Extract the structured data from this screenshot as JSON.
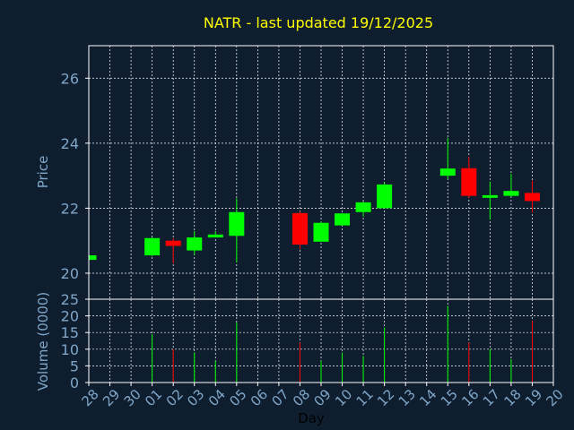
{
  "colors": {
    "background": "#0f1e2f",
    "title": "#ffff00",
    "axis_text": "#7fa6c8",
    "frame": "#ffffff",
    "grid": "#ffffff",
    "up": "#00ff00",
    "down": "#ff0000",
    "x_label": "#000000"
  },
  "chart_data": [
    {
      "type": "candlestick",
      "title": "NATR - last updated 19/12/2025",
      "ylabel": "Price",
      "ylim": [
        19.2,
        27.0
      ],
      "yticks": [
        20,
        22,
        24,
        26
      ],
      "grid": true,
      "x": [
        "28",
        "29",
        "30",
        "01",
        "02",
        "03",
        "04",
        "05",
        "06",
        "07",
        "08",
        "09",
        "10",
        "11",
        "12",
        "13",
        "14",
        "15",
        "16",
        "17",
        "18",
        "19",
        "20"
      ],
      "candles": [
        {
          "x": "28",
          "open": 20.41,
          "close": 20.55,
          "high": 20.55,
          "low": 20.41
        },
        {
          "x": "01",
          "open": 20.55,
          "close": 21.08,
          "high": 21.1,
          "low": 20.52
        },
        {
          "x": "02",
          "open": 21.0,
          "close": 20.84,
          "high": 21.08,
          "low": 20.3
        },
        {
          "x": "03",
          "open": 20.7,
          "close": 21.1,
          "high": 21.3,
          "low": 20.57
        },
        {
          "x": "04",
          "open": 21.1,
          "close": 21.19,
          "high": 21.3,
          "low": 21.1
        },
        {
          "x": "05",
          "open": 21.15,
          "close": 21.88,
          "high": 22.3,
          "low": 20.33
        },
        {
          "x": "08",
          "open": 21.85,
          "close": 20.88,
          "high": 21.9,
          "low": 20.74
        },
        {
          "x": "09",
          "open": 20.97,
          "close": 21.55,
          "high": 21.6,
          "low": 20.97
        },
        {
          "x": "10",
          "open": 21.47,
          "close": 21.84,
          "high": 21.84,
          "low": 21.47
        },
        {
          "x": "11",
          "open": 21.88,
          "close": 22.18,
          "high": 22.2,
          "low": 21.74
        },
        {
          "x": "12",
          "open": 22.0,
          "close": 22.73,
          "high": 22.79,
          "low": 22.0
        },
        {
          "x": "15",
          "open": 23.0,
          "close": 23.22,
          "high": 24.17,
          "low": 22.9
        },
        {
          "x": "16",
          "open": 23.23,
          "close": 22.38,
          "high": 23.58,
          "low": 22.32
        },
        {
          "x": "17",
          "open": 22.32,
          "close": 22.4,
          "high": 22.82,
          "low": 21.65
        },
        {
          "x": "18",
          "open": 22.38,
          "close": 22.53,
          "high": 23.06,
          "low": 22.35
        },
        {
          "x": "19",
          "open": 22.47,
          "close": 22.22,
          "high": 22.85,
          "low": 21.86
        }
      ]
    },
    {
      "type": "bar",
      "ylabel": "Volume (0000)",
      "xlabel": "Day",
      "ylim": [
        0,
        25
      ],
      "yticks": [
        0,
        5,
        10,
        15,
        20,
        25
      ],
      "grid": true,
      "x": [
        "28",
        "29",
        "30",
        "01",
        "02",
        "03",
        "04",
        "05",
        "06",
        "07",
        "08",
        "09",
        "10",
        "11",
        "12",
        "13",
        "14",
        "15",
        "16",
        "17",
        "18",
        "19",
        "20"
      ],
      "bars": [
        {
          "x": "01",
          "value": 14.5,
          "direction": "up"
        },
        {
          "x": "02",
          "value": 10,
          "direction": "down"
        },
        {
          "x": "03",
          "value": 9,
          "direction": "up"
        },
        {
          "x": "04",
          "value": 6.5,
          "direction": "up"
        },
        {
          "x": "05",
          "value": 18,
          "direction": "up"
        },
        {
          "x": "08",
          "value": 12,
          "direction": "down"
        },
        {
          "x": "09",
          "value": 6.5,
          "direction": "up"
        },
        {
          "x": "10",
          "value": 9,
          "direction": "up"
        },
        {
          "x": "11",
          "value": 8,
          "direction": "up"
        },
        {
          "x": "12",
          "value": 16.5,
          "direction": "up"
        },
        {
          "x": "15",
          "value": 23,
          "direction": "up"
        },
        {
          "x": "16",
          "value": 12,
          "direction": "down"
        },
        {
          "x": "17",
          "value": 10,
          "direction": "up"
        },
        {
          "x": "18",
          "value": 7,
          "direction": "up"
        },
        {
          "x": "19",
          "value": 18.5,
          "direction": "down"
        }
      ]
    }
  ]
}
